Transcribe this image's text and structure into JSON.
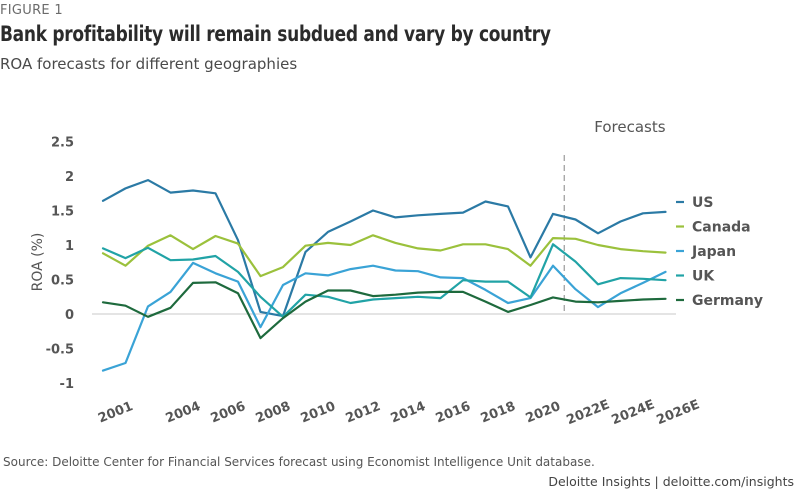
{
  "figure_label": "FIGURE 1",
  "title": "Bank profitability will remain subdued and vary by country",
  "subtitle": "ROA forecasts for different geographies",
  "source": "Source: Deloitte Center for Financial Services forecast using Economist Intelligence Unit database.",
  "credit": "Deloitte Insights | deloitte.com/insights",
  "chart_data": {
    "type": "line",
    "title": "Bank profitability will remain subdued and vary by country",
    "subtitle": "ROA forecasts for different geographies",
    "xlabel": "",
    "ylabel": "ROA (%)",
    "ylim": [
      -1,
      2.5
    ],
    "yticks": [
      "2.5",
      "2",
      "1.5",
      "1",
      "0.5",
      "0",
      "-0.5",
      "-1"
    ],
    "ytick_values": [
      2.5,
      2,
      1.5,
      1,
      0.5,
      0,
      -0.5,
      -1
    ],
    "x": [
      "2001",
      "2002",
      "2003",
      "2004",
      "2005",
      "2006",
      "2007",
      "2008",
      "2009",
      "2010",
      "2011",
      "2012",
      "2013",
      "2014",
      "2015",
      "2016",
      "2017",
      "2018",
      "2019",
      "2020",
      "2021",
      "2022E",
      "2023E",
      "2024E",
      "2025E",
      "2026E"
    ],
    "xtick_labels": [
      {
        "index": 0,
        "label": "2001"
      },
      {
        "index": 3,
        "label": "2004"
      },
      {
        "index": 5,
        "label": "2006"
      },
      {
        "index": 7,
        "label": "2008"
      },
      {
        "index": 9,
        "label": "2010"
      },
      {
        "index": 11,
        "label": "2012"
      },
      {
        "index": 13,
        "label": "2014"
      },
      {
        "index": 15,
        "label": "2016"
      },
      {
        "index": 17,
        "label": "2018"
      },
      {
        "index": 19,
        "label": "2020"
      },
      {
        "index": 21,
        "label": "2022E"
      },
      {
        "index": 23,
        "label": "2024E"
      },
      {
        "index": 25,
        "label": "2026E"
      }
    ],
    "forecast_marker": {
      "label": "Forecasts",
      "after_index": 20,
      "before_index": 21
    },
    "grid": false,
    "zero_line": true,
    "legend_position": "right",
    "series": [
      {
        "name": "US",
        "color": "#2b7aa5",
        "values": [
          1.64,
          1.82,
          1.94,
          1.76,
          1.79,
          1.75,
          1.07,
          0.03,
          -0.03,
          0.9,
          1.19,
          1.34,
          1.5,
          1.4,
          1.43,
          1.45,
          1.47,
          1.63,
          1.56,
          0.82,
          1.45,
          1.37,
          1.17,
          1.34,
          1.46,
          1.48
        ]
      },
      {
        "name": "Canada",
        "color": "#9bc13c",
        "values": [
          0.88,
          0.7,
          0.99,
          1.14,
          0.94,
          1.13,
          1.02,
          0.55,
          0.68,
          0.99,
          1.03,
          1.0,
          1.14,
          1.03,
          0.95,
          0.92,
          1.01,
          1.01,
          0.94,
          0.7,
          1.1,
          1.09,
          1.0,
          0.94,
          0.91,
          0.89
        ]
      },
      {
        "name": "Japan",
        "color": "#3aa3d6",
        "values": [
          -0.82,
          -0.71,
          0.11,
          0.32,
          0.74,
          0.59,
          0.47,
          -0.19,
          0.42,
          0.59,
          0.56,
          0.65,
          0.7,
          0.63,
          0.62,
          0.53,
          0.52,
          0.35,
          0.16,
          0.23,
          0.7,
          0.36,
          0.1,
          0.3,
          0.45,
          0.61
        ]
      },
      {
        "name": "UK",
        "color": "#21a3a6",
        "values": [
          0.95,
          0.81,
          0.96,
          0.78,
          0.79,
          0.84,
          0.61,
          0.25,
          -0.04,
          0.28,
          0.25,
          0.16,
          0.21,
          0.23,
          0.25,
          0.23,
          0.49,
          0.47,
          0.47,
          0.24,
          1.01,
          0.76,
          0.43,
          0.52,
          0.51,
          0.49
        ]
      },
      {
        "name": "Germany",
        "color": "#1e6a3d",
        "values": [
          0.17,
          0.12,
          -0.04,
          0.09,
          0.45,
          0.46,
          0.3,
          -0.35,
          -0.06,
          0.18,
          0.34,
          0.34,
          0.26,
          0.28,
          0.31,
          0.32,
          0.32,
          0.18,
          0.03,
          0.13,
          0.24,
          0.18,
          0.17,
          0.19,
          0.21,
          0.22
        ]
      }
    ]
  }
}
